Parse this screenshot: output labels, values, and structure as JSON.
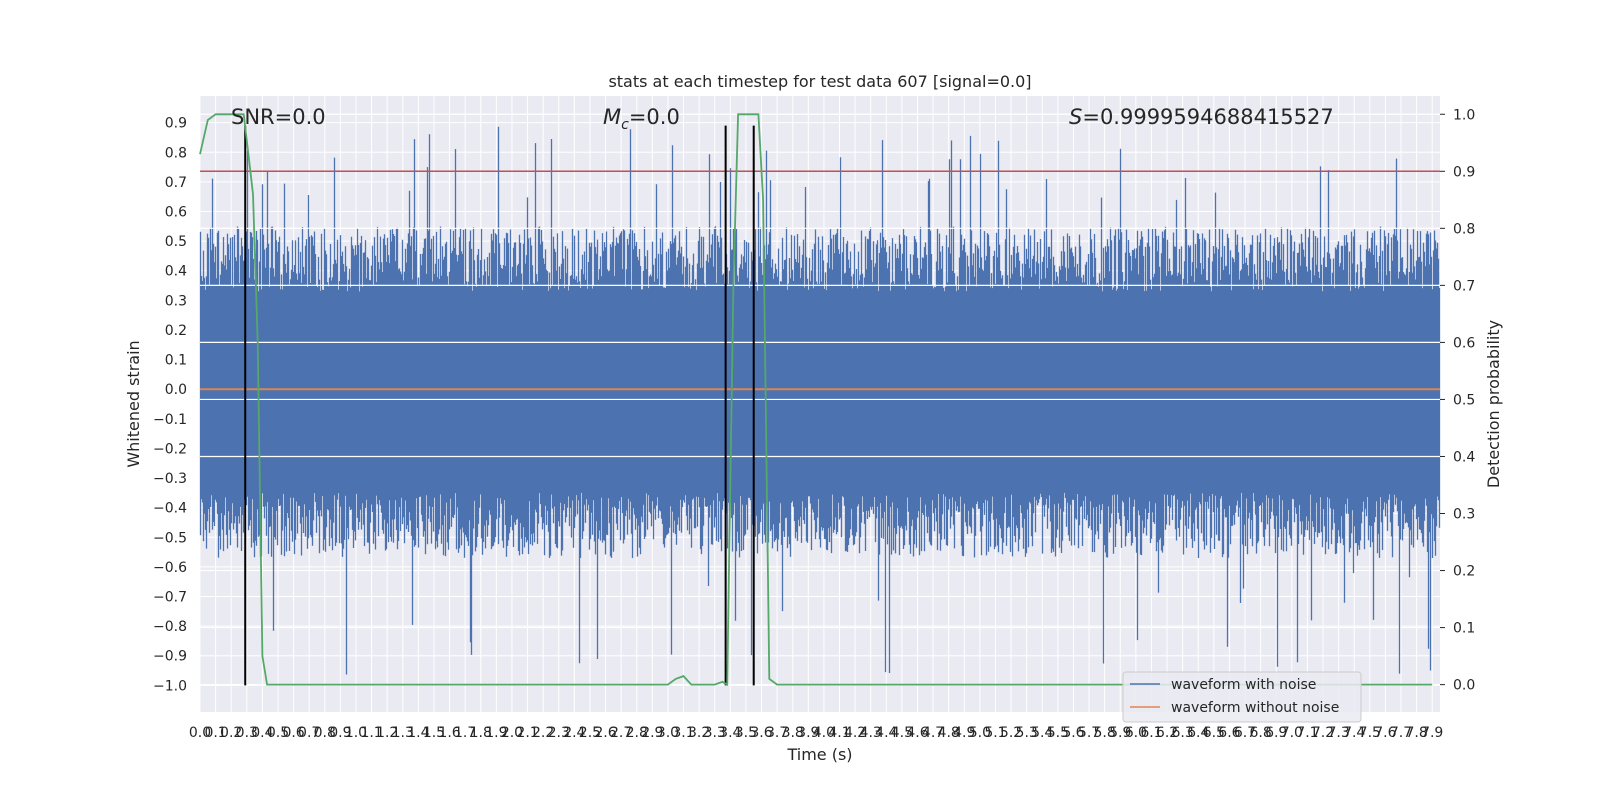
{
  "chart_data": {
    "type": "line",
    "title": "stats at each timestep for test data 607 [signal=0.0]",
    "xlabel": "Time (s)",
    "ylabel": "Whitened strain",
    "y2label": "Detection probability",
    "xlim": [
      0.0,
      7.95
    ],
    "ylim": [
      -1.09,
      0.99
    ],
    "y2lim": [
      -0.048,
      1.032
    ],
    "grid": true,
    "legend_position": "bottom-right",
    "x_tick_labels": [
      "0.0",
      "0.1",
      "0.2",
      "0.3",
      "0.4",
      "0.5",
      "0.6",
      "0.7",
      "0.8",
      "0.9",
      "1.0",
      "1.1",
      "1.2",
      "1.3",
      "1.4",
      "1.5",
      "1.6",
      "1.7",
      "1.8",
      "1.9",
      "2.0",
      "2.1",
      "2.2",
      "2.3",
      "2.4",
      "2.5",
      "2.6",
      "2.7",
      "2.8",
      "2.9",
      "3.0",
      "3.1",
      "3.2",
      "3.3",
      "3.4",
      "3.5",
      "3.6",
      "3.7",
      "3.8",
      "3.9",
      "4.0",
      "4.1",
      "4.2",
      "4.3",
      "4.4",
      "4.5",
      "4.6",
      "4.7",
      "4.8",
      "4.9",
      "5.0",
      "5.1",
      "5.2",
      "5.3",
      "5.4",
      "5.5",
      "5.6",
      "5.7",
      "5.8",
      "5.9",
      "6.0",
      "6.1",
      "6.2",
      "6.3",
      "6.4",
      "6.5",
      "6.6",
      "6.7",
      "6.8",
      "6.9",
      "7.0",
      "7.1",
      "7.2",
      "7.3",
      "7.4",
      "7.5",
      "7.6",
      "7.7",
      "7.8",
      "7.9"
    ],
    "y_tick_labels": [
      "0.9",
      "0.8",
      "0.7",
      "0.6",
      "0.5",
      "0.4",
      "0.3",
      "0.2",
      "0.1",
      "0.0",
      "−0.1",
      "−0.2",
      "−0.3",
      "−0.4",
      "−0.5",
      "−0.6",
      "−0.7",
      "−0.8",
      "−0.9",
      "−1.0"
    ],
    "y_tick_values": [
      0.9,
      0.8,
      0.7,
      0.6,
      0.5,
      0.4,
      0.3,
      0.2,
      0.1,
      0.0,
      -0.1,
      -0.2,
      -0.3,
      -0.4,
      -0.5,
      -0.6,
      -0.7,
      -0.8,
      -0.9,
      -1.0
    ],
    "y2_tick_labels": [
      "1.0",
      "0.9",
      "0.8",
      "0.7",
      "0.6",
      "0.5",
      "0.4",
      "0.3",
      "0.2",
      "0.1",
      "0.0"
    ],
    "y2_tick_values": [
      1.0,
      0.9,
      0.8,
      0.7,
      0.6,
      0.5,
      0.4,
      0.3,
      0.2,
      0.1,
      0.0
    ],
    "annotations": {
      "snr": "SNR=0.0",
      "mc_symbol": "M",
      "mc_sub": "c",
      "mc_value": "=0.0",
      "s_symbol": "S",
      "s_value": "=0.9999594688415527"
    },
    "series": [
      {
        "name": "waveform with noise",
        "color": "#4c72b0",
        "kind": "noise",
        "amplitude_core": [
          -0.35,
          0.33
        ],
        "amplitude_extremes": [
          -0.97,
          0.89
        ]
      },
      {
        "name": "waveform without noise",
        "color": "#dd8452",
        "kind": "flat",
        "value": 0.0
      },
      {
        "name": "detection probability",
        "color": "#55a868",
        "axis": "right",
        "x": [
          0.0,
          0.05,
          0.1,
          0.15,
          0.2,
          0.25,
          0.28,
          0.31,
          0.34,
          0.37,
          0.4,
          0.43,
          0.46,
          0.5,
          1.0,
          2.0,
          2.95,
          3.0,
          3.05,
          3.1,
          3.15,
          3.2,
          3.3,
          3.35,
          3.38,
          3.42,
          3.45,
          3.5,
          3.55,
          3.58,
          3.61,
          3.65,
          3.7,
          3.75,
          4.0,
          5.0,
          6.0,
          7.0,
          7.9
        ],
        "y": [
          0.93,
          0.99,
          1.0,
          1.0,
          1.0,
          1.0,
          1.0,
          0.93,
          0.86,
          0.6,
          0.05,
          0.0,
          0.0,
          0.0,
          0.0,
          0.0,
          0.0,
          0.0,
          0.01,
          0.015,
          0.0,
          0.0,
          0.0,
          0.005,
          0.0,
          0.7,
          1.0,
          1.0,
          1.0,
          1.0,
          0.85,
          0.01,
          0.0,
          0.0,
          0.0,
          0.0,
          0.0,
          0.0,
          0.0
        ]
      }
    ],
    "threshold": {
      "axis": "right",
      "value": 0.9,
      "color": "#c44e52"
    },
    "vertical_markers": [
      {
        "x": 0.29,
        "y_range": [
          -1.0,
          0.89
        ],
        "color": "#000000"
      },
      {
        "x": 3.37,
        "y_range": [
          -1.0,
          0.89
        ],
        "color": "#000000"
      },
      {
        "x": 3.55,
        "y_range": [
          -1.0,
          0.89
        ],
        "color": "#000000"
      }
    ]
  }
}
